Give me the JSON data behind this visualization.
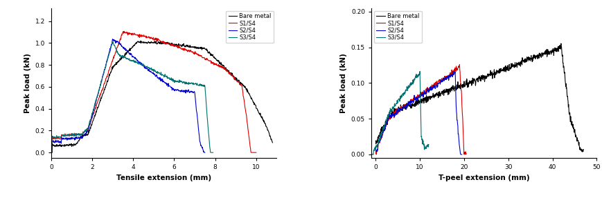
{
  "left_chart": {
    "xlabel": "Tensile extension (mm)",
    "ylabel": "Peak load (kN)",
    "xlim": [
      0,
      11
    ],
    "ylim": [
      -0.05,
      1.32
    ],
    "yticks": [
      0.0,
      0.2,
      0.4,
      0.6,
      0.8,
      1.0,
      1.2
    ],
    "xticks": [
      0,
      2,
      4,
      6,
      8,
      10
    ],
    "legend": [
      "Bare metal",
      "S1/S4",
      "S2/S4",
      "S3/S4"
    ],
    "colors": [
      "black",
      "#dd0000",
      "#0000cc",
      "#007070"
    ]
  },
  "right_chart": {
    "xlabel": "T-peel extension (mm)",
    "ylabel": "Peak load (kN)",
    "xlim": [
      -1,
      50
    ],
    "ylim": [
      -0.005,
      0.205
    ],
    "yticks": [
      0.0,
      0.05,
      0.1,
      0.15,
      0.2
    ],
    "xticks": [
      0,
      10,
      20,
      30,
      40,
      50
    ],
    "legend": [
      "Bare metal",
      "S1/S4",
      "S2/S4",
      "S3/S4"
    ],
    "colors": [
      "black",
      "#dd0000",
      "#0000cc",
      "#007070"
    ]
  }
}
